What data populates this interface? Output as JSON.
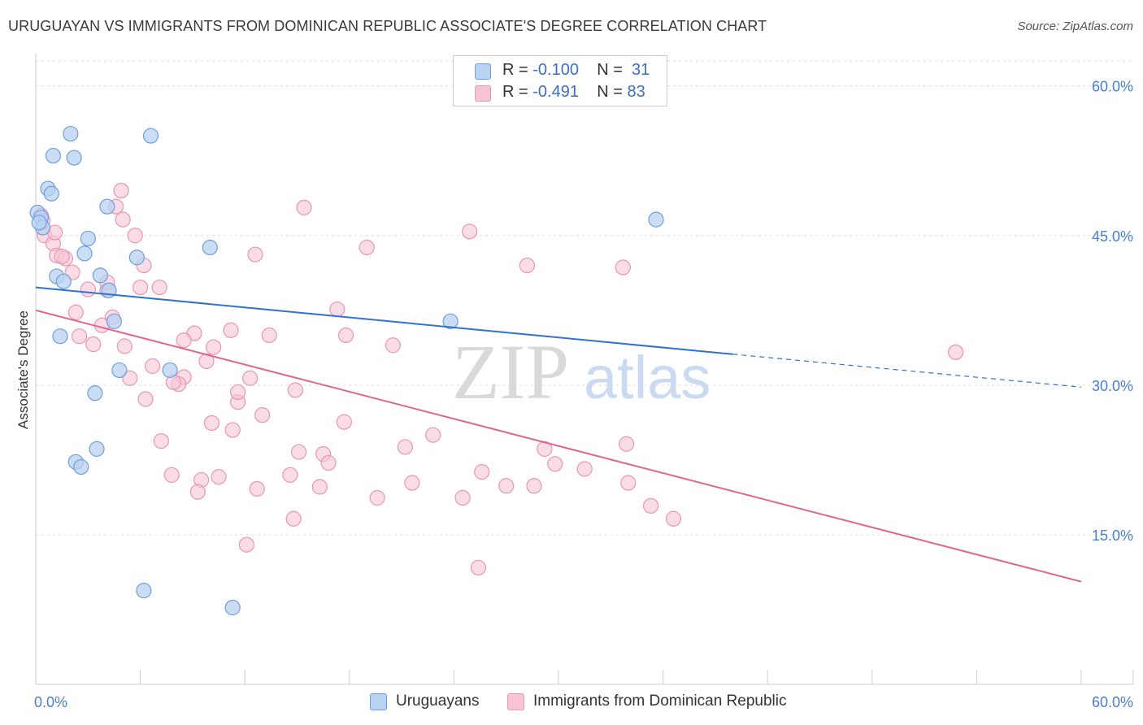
{
  "title": "URUGUAYAN VS IMMIGRANTS FROM DOMINICAN REPUBLIC ASSOCIATE'S DEGREE CORRELATION CHART",
  "source": "Source: ZipAtlas.com",
  "colors": {
    "series1_fill": "#b8d2f2",
    "series1_stroke": "#6d9fe0",
    "series1_line": "#2f72d0",
    "series2_fill": "#f7c4d6",
    "series2_stroke": "#e995b4",
    "series2_line": "#e0668f",
    "grid": "#dddddd",
    "axis_text": "#4a7fd0"
  },
  "legend": {
    "r_label": "R =",
    "n_label": "N =",
    "series1": {
      "r": "-0.100",
      "n": "31"
    },
    "series2": {
      "r": "-0.491",
      "n": "83"
    }
  },
  "bottom_legend": {
    "series1": "Uruguayans",
    "series2": "Immigrants from Dominican Republic"
  },
  "chart_data": {
    "type": "scatter",
    "xlabel": "",
    "ylabel": "Associate's Degree",
    "xlim": [
      0,
      60
    ],
    "ylim": [
      0,
      62.5
    ],
    "x_tick_labels": [
      "0.0%",
      "60.0%"
    ],
    "y_ticks": [
      15,
      30,
      45,
      60
    ],
    "y_tick_labels": [
      "15.0%",
      "30.0%",
      "45.0%",
      "60.0%"
    ],
    "watermark": {
      "zip": "ZIP",
      "atlas": "atlas"
    },
    "series": [
      {
        "name": "Uruguayans",
        "r": -0.1,
        "n": 31,
        "trend": {
          "x0": 0,
          "y0": 39.8,
          "x1": 40,
          "y1": 33.1,
          "dash_to_x": 60,
          "dash_to_y": 29.8
        },
        "points": [
          [
            2.0,
            55.2
          ],
          [
            6.6,
            55.0
          ],
          [
            1.0,
            53.0
          ],
          [
            2.2,
            52.8
          ],
          [
            0.7,
            49.7
          ],
          [
            0.9,
            49.2
          ],
          [
            0.1,
            47.3
          ],
          [
            0.3,
            46.8
          ],
          [
            4.1,
            47.9
          ],
          [
            35.6,
            46.6
          ],
          [
            0.4,
            45.8
          ],
          [
            3.0,
            44.7
          ],
          [
            10.0,
            43.8
          ],
          [
            2.8,
            43.2
          ],
          [
            5.8,
            42.8
          ],
          [
            1.2,
            40.9
          ],
          [
            1.6,
            40.4
          ],
          [
            3.7,
            41.0
          ],
          [
            4.2,
            39.5
          ],
          [
            23.8,
            36.4
          ],
          [
            4.5,
            36.4
          ],
          [
            1.4,
            34.9
          ],
          [
            4.8,
            31.5
          ],
          [
            7.7,
            31.5
          ],
          [
            3.4,
            29.2
          ],
          [
            3.5,
            23.6
          ],
          [
            2.3,
            22.3
          ],
          [
            2.6,
            21.8
          ],
          [
            6.2,
            9.4
          ],
          [
            11.3,
            7.7
          ],
          [
            0.2,
            46.3
          ]
        ]
      },
      {
        "name": "Immigrants from Dominican Republic",
        "r": -0.491,
        "n": 83,
        "trend": {
          "x0": 0,
          "y0": 37.5,
          "x1": 60,
          "y1": 10.3
        },
        "points": [
          [
            0.3,
            47.0
          ],
          [
            0.4,
            46.5
          ],
          [
            0.5,
            45.0
          ],
          [
            1.0,
            44.2
          ],
          [
            1.2,
            43.0
          ],
          [
            1.7,
            42.7
          ],
          [
            1.5,
            42.9
          ],
          [
            2.1,
            41.3
          ],
          [
            3.0,
            39.6
          ],
          [
            4.1,
            39.5
          ],
          [
            1.1,
            45.3
          ],
          [
            5.7,
            45.0
          ],
          [
            4.6,
            47.9
          ],
          [
            4.9,
            49.5
          ],
          [
            5.0,
            46.6
          ],
          [
            6.2,
            42.0
          ],
          [
            6.0,
            39.8
          ],
          [
            7.1,
            39.8
          ],
          [
            4.1,
            40.3
          ],
          [
            2.3,
            37.3
          ],
          [
            4.4,
            36.8
          ],
          [
            3.8,
            36.0
          ],
          [
            2.5,
            34.9
          ],
          [
            3.3,
            34.1
          ],
          [
            5.1,
            33.9
          ],
          [
            9.1,
            35.2
          ],
          [
            8.5,
            34.5
          ],
          [
            11.2,
            35.5
          ],
          [
            13.4,
            35.0
          ],
          [
            10.2,
            33.8
          ],
          [
            6.7,
            31.9
          ],
          [
            9.8,
            32.4
          ],
          [
            8.5,
            30.8
          ],
          [
            8.2,
            30.1
          ],
          [
            7.9,
            30.3
          ],
          [
            5.4,
            30.7
          ],
          [
            6.3,
            28.6
          ],
          [
            11.6,
            28.3
          ],
          [
            11.6,
            29.3
          ],
          [
            12.3,
            30.7
          ],
          [
            14.9,
            29.5
          ],
          [
            13.0,
            27.0
          ],
          [
            10.1,
            26.2
          ],
          [
            11.3,
            25.5
          ],
          [
            7.2,
            24.4
          ],
          [
            17.3,
            37.6
          ],
          [
            17.8,
            35.0
          ],
          [
            20.5,
            34.0
          ],
          [
            12.6,
            43.1
          ],
          [
            15.4,
            47.8
          ],
          [
            19.0,
            43.8
          ],
          [
            24.9,
            45.4
          ],
          [
            28.2,
            42.0
          ],
          [
            33.7,
            41.8
          ],
          [
            17.7,
            26.3
          ],
          [
            15.1,
            23.3
          ],
          [
            16.5,
            23.1
          ],
          [
            16.8,
            22.2
          ],
          [
            21.2,
            23.8
          ],
          [
            22.8,
            25.0
          ],
          [
            29.2,
            23.6
          ],
          [
            33.9,
            24.1
          ],
          [
            7.8,
            21.0
          ],
          [
            9.5,
            20.5
          ],
          [
            10.5,
            20.8
          ],
          [
            9.3,
            19.3
          ],
          [
            12.7,
            19.6
          ],
          [
            14.6,
            21.0
          ],
          [
            16.3,
            19.8
          ],
          [
            19.6,
            18.7
          ],
          [
            21.6,
            20.2
          ],
          [
            24.5,
            18.7
          ],
          [
            25.6,
            21.3
          ],
          [
            27.0,
            19.9
          ],
          [
            28.6,
            19.9
          ],
          [
            29.8,
            22.1
          ],
          [
            31.5,
            21.6
          ],
          [
            34.0,
            20.2
          ],
          [
            35.3,
            17.9
          ],
          [
            36.6,
            16.6
          ],
          [
            14.8,
            16.6
          ],
          [
            12.1,
            14.0
          ],
          [
            25.4,
            11.7
          ],
          [
            52.8,
            33.3
          ]
        ]
      }
    ]
  }
}
